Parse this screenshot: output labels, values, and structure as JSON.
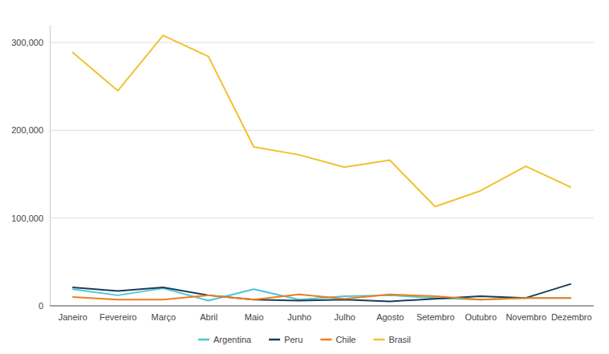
{
  "chart_data": {
    "type": "line",
    "categories": [
      "Janeiro",
      "Fevereiro",
      "Março",
      "Abril",
      "Maio",
      "Junho",
      "Julho",
      "Agosto",
      "Setembro",
      "Outubro",
      "Novembro",
      "Dezembro"
    ],
    "series": [
      {
        "name": "Argentina",
        "color": "#4dc6d6",
        "values": [
          19000,
          12000,
          20000,
          6000,
          19000,
          7000,
          11000,
          12000,
          9000,
          7000,
          9000,
          9000
        ]
      },
      {
        "name": "Peru",
        "color": "#1c3d5a",
        "values": [
          21000,
          17000,
          21000,
          12000,
          7000,
          6000,
          7000,
          5000,
          8000,
          11000,
          9000,
          25000
        ]
      },
      {
        "name": "Chile",
        "color": "#f07c1b",
        "values": [
          10000,
          7000,
          7000,
          12000,
          7000,
          13000,
          8000,
          13000,
          11000,
          7000,
          9000,
          9000
        ]
      },
      {
        "name": "Brasil",
        "color": "#f2c12e",
        "values": [
          289000,
          245000,
          308000,
          284000,
          181000,
          172000,
          158000,
          166000,
          113000,
          131000,
          159000,
          135000
        ]
      }
    ],
    "ylim": [
      0,
      320000
    ],
    "yticks": [
      0,
      {
        "value": 100000,
        "label": "100,000"
      },
      {
        "value": 200000,
        "label": "200,000"
      },
      {
        "value": 300000,
        "label": "300,000"
      }
    ],
    "grid": true,
    "legend": "bottom"
  }
}
